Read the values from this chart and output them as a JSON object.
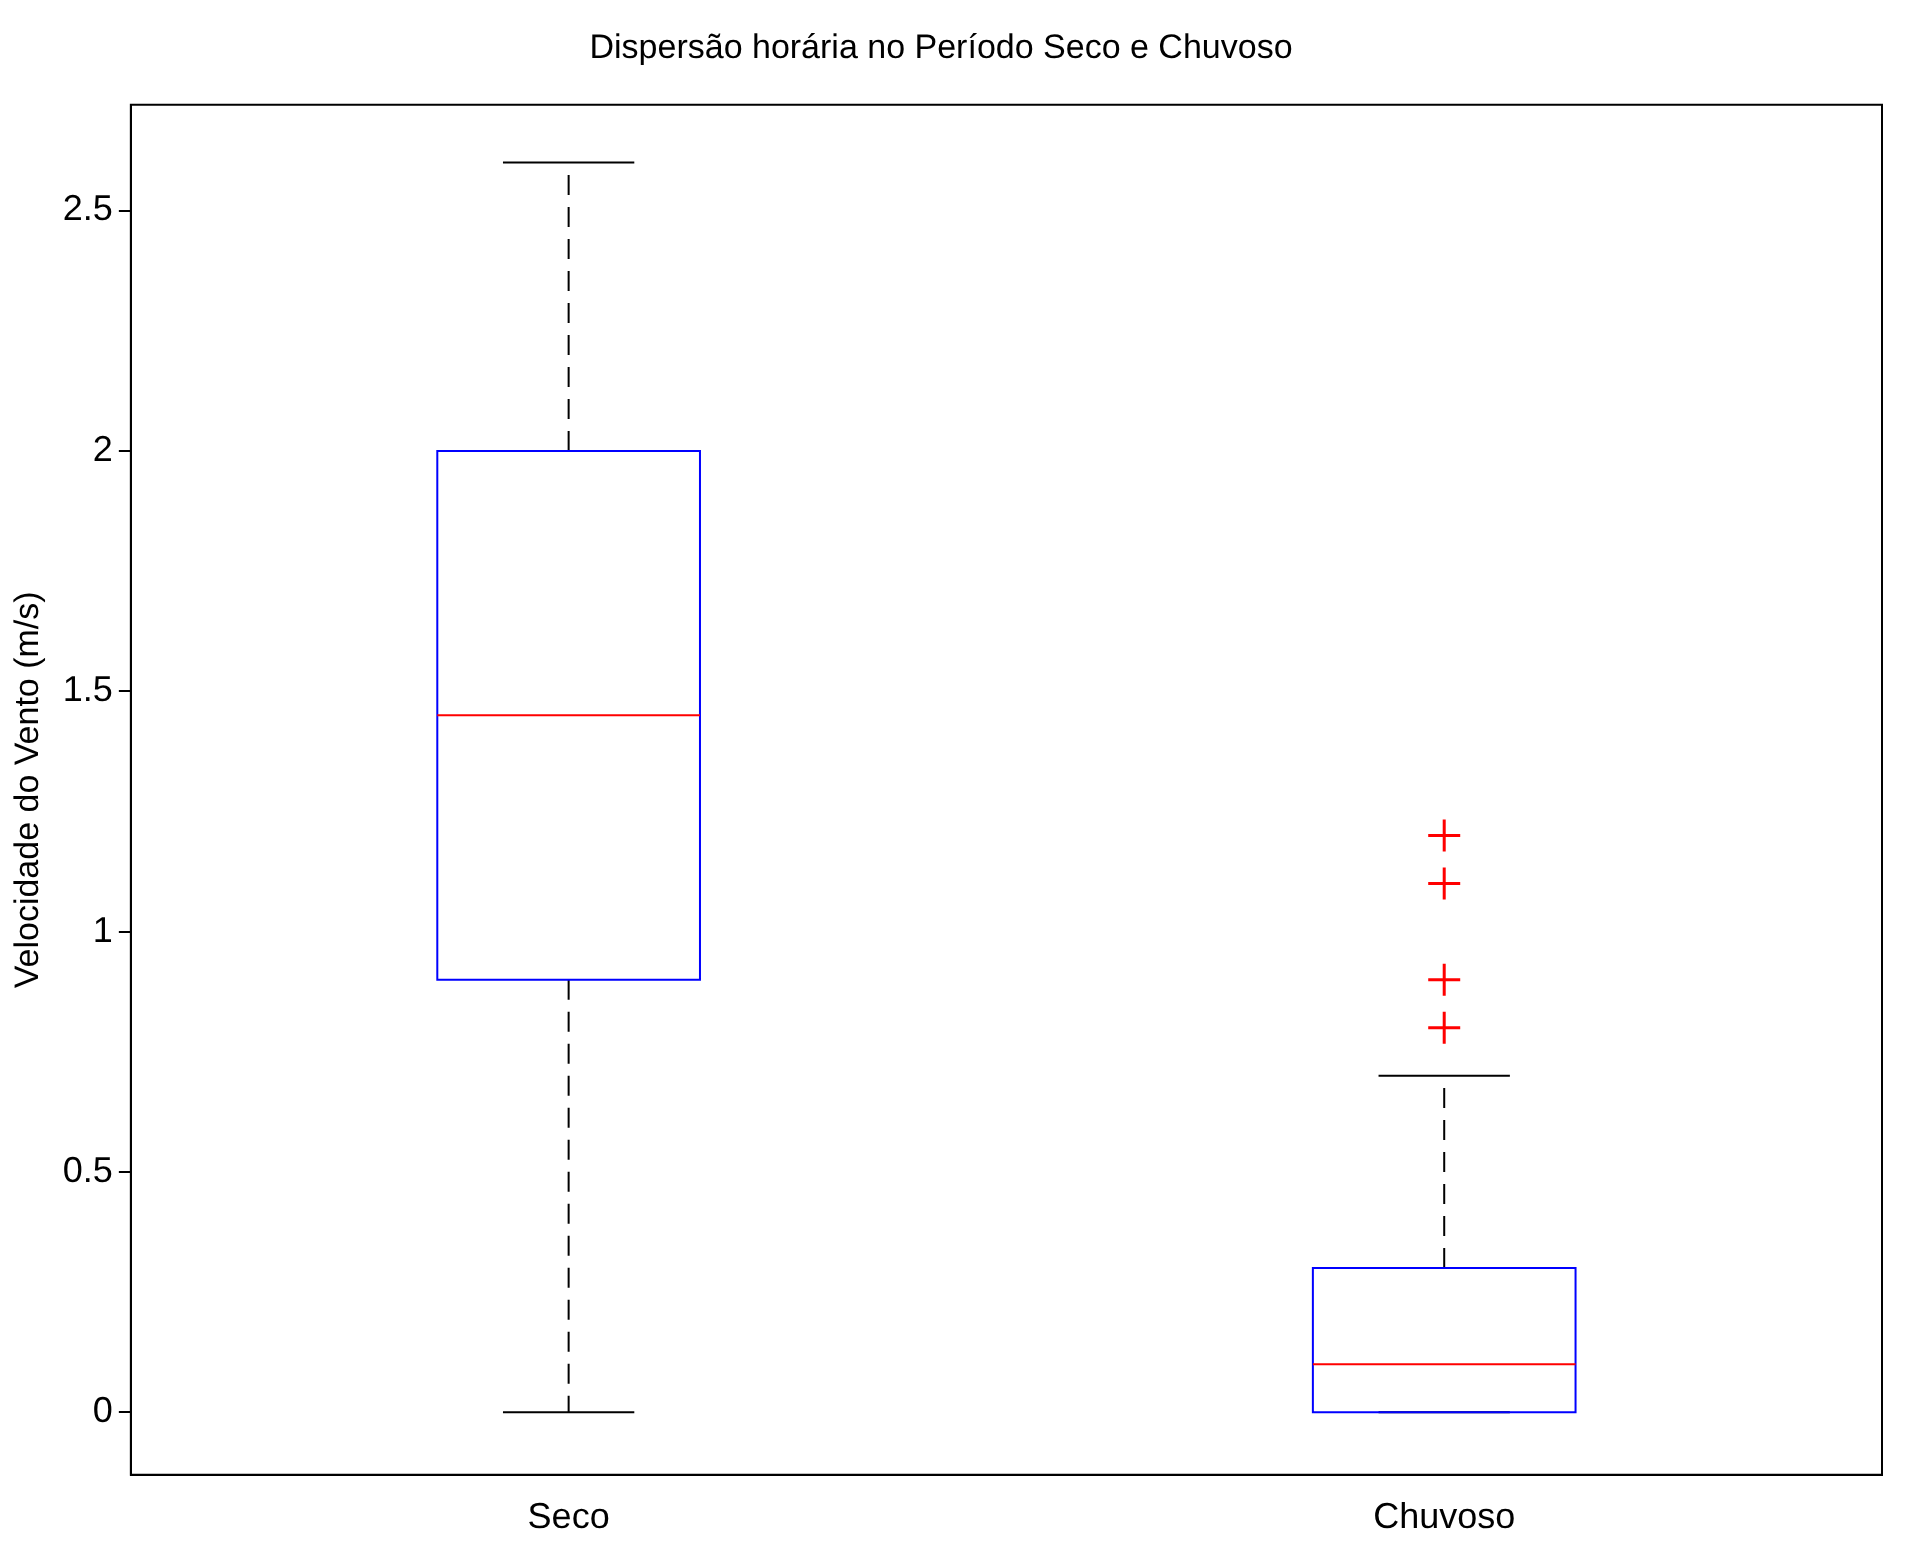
{
  "chart_data": {
    "type": "box",
    "title": "Dispersão horária no Período Seco e Chuvoso",
    "ylabel": "Velocidade do Vento (m/s)",
    "categories": [
      "Seco",
      "Chuvoso"
    ],
    "boxes": [
      {
        "low": 0,
        "q1": 0.9,
        "median": 1.45,
        "q3": 2.0,
        "high": 2.6
      },
      {
        "low": 0,
        "q1": 0,
        "median": 0.1,
        "q3": 0.3,
        "high": 0.7,
        "outliers": [
          0.8,
          0.9,
          1.1,
          1.2
        ]
      }
    ],
    "color": "#0000ff",
    "marker": "cross",
    "ylim": [
      -0.13,
      2.72
    ],
    "yticks": [
      0,
      0.5,
      1,
      1.5,
      2,
      2.5
    ]
  }
}
